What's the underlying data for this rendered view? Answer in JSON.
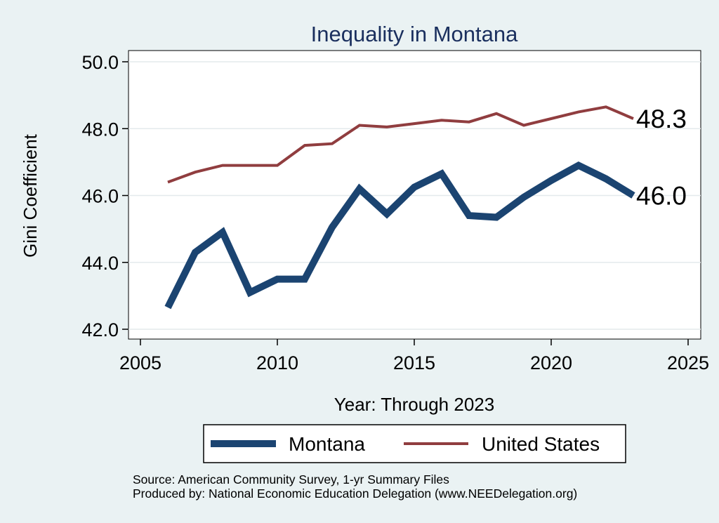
{
  "chart_data": {
    "type": "line",
    "title": "Inequality in Montana",
    "xlabel": "Year: Through 2023",
    "ylabel": "Gini Coefficient",
    "xlim": [
      2005,
      2025
    ],
    "ylim": [
      42.0,
      50.0
    ],
    "x_ticks": [
      2005,
      2010,
      2015,
      2020,
      2025
    ],
    "y_ticks": [
      "42.0",
      "44.0",
      "46.0",
      "48.0",
      "50.0"
    ],
    "y_tick_values": [
      42,
      44,
      46,
      48,
      50
    ],
    "grid": true,
    "legend_position": "bottom",
    "x": [
      2006,
      2007,
      2008,
      2009,
      2010,
      2011,
      2012,
      2013,
      2014,
      2015,
      2016,
      2017,
      2018,
      2019,
      2020,
      2021,
      2022,
      2023
    ],
    "series": [
      {
        "name": "Montana",
        "color": "#1b4471",
        "line_style": "thick",
        "values": [
          42.65,
          44.3,
          44.9,
          43.1,
          43.5,
          43.5,
          45.05,
          46.2,
          45.45,
          46.25,
          46.65,
          45.4,
          45.35,
          45.95,
          46.45,
          46.9,
          46.5,
          46.0
        ],
        "end_label": "46.0"
      },
      {
        "name": "United States",
        "color": "#903d3f",
        "line_style": "thin",
        "values": [
          46.4,
          46.7,
          46.9,
          46.9,
          46.9,
          47.5,
          47.55,
          48.1,
          48.05,
          48.15,
          48.25,
          48.2,
          48.45,
          48.1,
          48.3,
          48.5,
          48.65,
          48.3
        ],
        "end_label": "48.3"
      }
    ],
    "notes": [
      "Source: American Community Survey, 1-yr Summary Files",
      "Produced by: National Economic Education Delegation (www.NEEDelegation.org)"
    ]
  },
  "colors": {
    "background": "#eaf2f3",
    "plot_background": "#ffffff",
    "title": "#1a2f5e",
    "grid": "#e4eaec"
  }
}
